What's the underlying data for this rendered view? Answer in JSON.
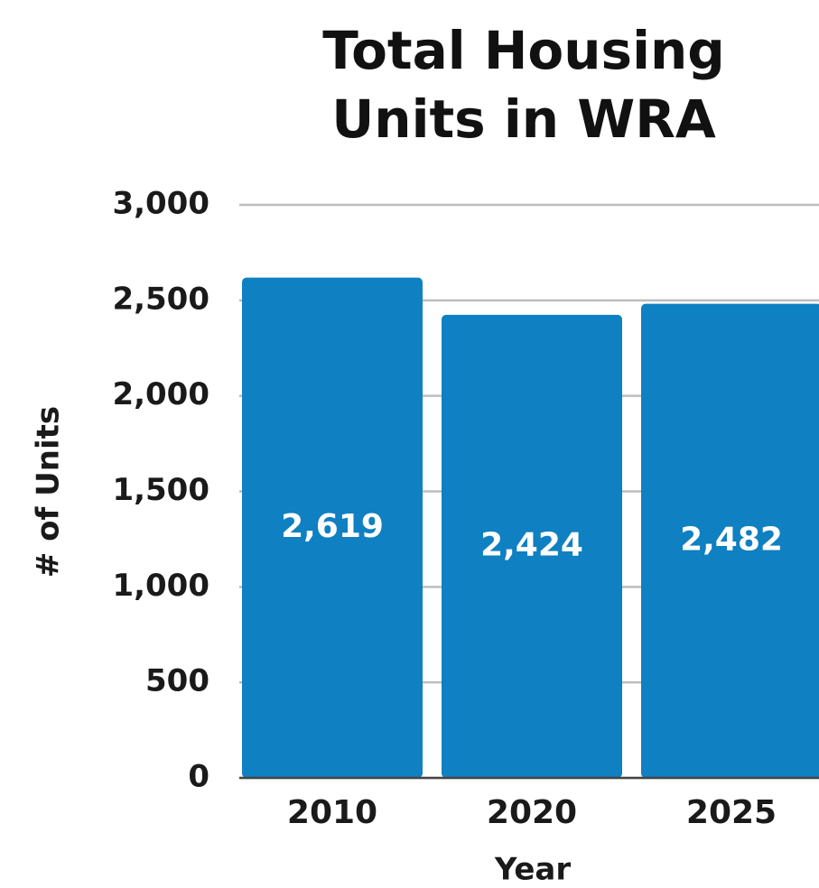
{
  "chart_data": {
    "type": "bar",
    "title": "Total Housing Units in WRA",
    "x_label": "Year",
    "y_label": "# of Units",
    "categories": [
      "2010",
      "2020",
      "2025"
    ],
    "values": [
      2619,
      2424,
      2482
    ],
    "value_labels": [
      "2,619",
      "2,424",
      "2,482"
    ],
    "color": "#0f80c1",
    "ylim": [
      0,
      3000
    ],
    "yticks": [
      0,
      500,
      {
        "value": 1000,
        "label": "1,000"
      },
      {
        "value": 1500,
        "label": "1,500"
      },
      {
        "value": 2000,
        "label": "2,000"
      },
      {
        "value": 2500,
        "label": "2,500"
      },
      {
        "value": 3000,
        "label": "3,000"
      }
    ],
    "grid": true
  }
}
